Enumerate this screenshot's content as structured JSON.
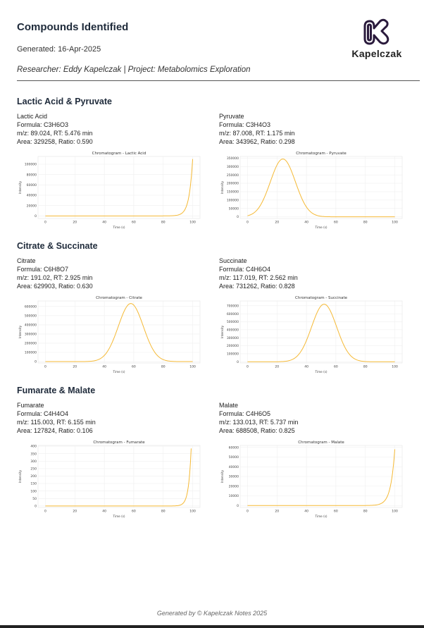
{
  "header": {
    "title": "Compounds Identified",
    "generated": "Generated: 16-Apr-2025",
    "researcher": "Researcher: Eddy Kapelczak | Project: Metabolomics Exploration",
    "brand": "Kapelczak",
    "logo_icon": "k-logo-icon",
    "logo_color": "#2a1a3c"
  },
  "sections": [
    {
      "title": "Lactic Acid & Pyruvate",
      "compounds": [
        {
          "name": "Lactic Acid",
          "formula": "Formula: C3H6O3",
          "mz_rt": "m/z: 89.024, RT: 5.476 min",
          "area_ratio": "Area: 329258, Ratio: 0.590"
        },
        {
          "name": "Pyruvate",
          "formula": "Formula: C3H4O3",
          "mz_rt": "m/z: 87.008, RT: 1.175 min",
          "area_ratio": "Area: 343962, Ratio: 0.298"
        }
      ]
    },
    {
      "title": "Citrate & Succinate",
      "compounds": [
        {
          "name": "Citrate",
          "formula": "Formula: C6H8O7",
          "mz_rt": "m/z: 191.02, RT: 2.925 min",
          "area_ratio": "Area: 629903, Ratio: 0.630"
        },
        {
          "name": "Succinate",
          "formula": "Formula: C4H6O4",
          "mz_rt": "m/z: 117.019, RT: 2.562 min",
          "area_ratio": "Area: 731262, Ratio: 0.828"
        }
      ]
    },
    {
      "title": "Fumarate & Malate",
      "compounds": [
        {
          "name": "Fumarate",
          "formula": "Formula: C4H4O4",
          "mz_rt": "m/z: 115.003, RT: 6.155 min",
          "area_ratio": "Area: 127824, Ratio: 0.106"
        },
        {
          "name": "Malate",
          "formula": "Formula: C4H6O5",
          "mz_rt": "m/z: 133.013, RT: 5.737 min",
          "area_ratio": "Area: 688508, Ratio: 0.825"
        }
      ]
    }
  ],
  "chart_data": [
    {
      "type": "line",
      "title": "Chromatogram - Lactic Acid",
      "xlabel": "Time (s)",
      "ylabel": "Intensity",
      "xlim": [
        -5,
        105
      ],
      "ylim": [
        -5000,
        115000
      ],
      "xticks": [
        0,
        20,
        40,
        60,
        80,
        100
      ],
      "yticks": [
        0,
        20000,
        40000,
        60000,
        80000,
        100000
      ],
      "grid": true,
      "color": "#f5b935",
      "shape": "exponential",
      "peak": {
        "x": 100,
        "y": 110000,
        "onset_x": 88
      }
    },
    {
      "type": "line",
      "title": "Chromatogram - Pyruvate",
      "xlabel": "Time (s)",
      "ylabel": "Intensity",
      "xlim": [
        -5,
        105
      ],
      "ylim": [
        -10000,
        360000
      ],
      "xticks": [
        0,
        20,
        40,
        60,
        80,
        100
      ],
      "yticks": [
        0,
        50000,
        100000,
        150000,
        200000,
        250000,
        300000,
        350000
      ],
      "grid": true,
      "color": "#f5b935",
      "shape": "gaussian",
      "peak": {
        "x": 24,
        "y": 345000,
        "sigma": 8.5
      }
    },
    {
      "type": "line",
      "title": "Chromatogram - Citrate",
      "xlabel": "Time (s)",
      "ylabel": "Intensity",
      "xlim": [
        -5,
        105
      ],
      "ylim": [
        -15000,
        660000
      ],
      "xticks": [
        0,
        20,
        40,
        60,
        80,
        100
      ],
      "yticks": [
        0,
        100000,
        200000,
        300000,
        400000,
        500000,
        600000
      ],
      "grid": true,
      "color": "#f5b935",
      "shape": "gaussian",
      "peak": {
        "x": 58,
        "y": 632000,
        "sigma": 8.5
      }
    },
    {
      "type": "line",
      "title": "Chromatogram - Succinate",
      "xlabel": "Time (s)",
      "ylabel": "Intensity",
      "xlim": [
        -5,
        105
      ],
      "ylim": [
        -15000,
        760000
      ],
      "xticks": [
        0,
        20,
        40,
        60,
        80,
        100
      ],
      "yticks": [
        0,
        100000,
        200000,
        300000,
        400000,
        500000,
        600000,
        700000
      ],
      "grid": true,
      "color": "#f5b935",
      "shape": "gaussian",
      "peak": {
        "x": 52,
        "y": 720000,
        "sigma": 8.5
      }
    },
    {
      "type": "line",
      "title": "Chromatogram - Fumarate",
      "xlabel": "Time (s)",
      "ylabel": "Intensity",
      "xlim": [
        -5,
        105
      ],
      "ylim": [
        -10,
        405
      ],
      "xticks": [
        0,
        20,
        40,
        60,
        80,
        100
      ],
      "yticks": [
        0,
        50,
        100,
        150,
        200,
        250,
        300,
        350,
        400
      ],
      "grid": true,
      "color": "#f5b935",
      "shape": "exponential",
      "peak": {
        "x": 99,
        "y": 385,
        "onset_x": 90
      }
    },
    {
      "type": "line",
      "title": "Chromatogram - Malate",
      "xlabel": "Time (s)",
      "ylabel": "Intensity",
      "xlim": [
        -5,
        105
      ],
      "ylim": [
        -2000,
        62000
      ],
      "xticks": [
        0,
        20,
        40,
        60,
        80,
        100
      ],
      "yticks": [
        0,
        10000,
        20000,
        30000,
        40000,
        50000,
        60000
      ],
      "grid": true,
      "color": "#f5b935",
      "shape": "exponential",
      "peak": {
        "x": 100,
        "y": 58000,
        "onset_x": 86
      }
    }
  ],
  "footer": "Generated by © Kapelczak Notes 2025"
}
